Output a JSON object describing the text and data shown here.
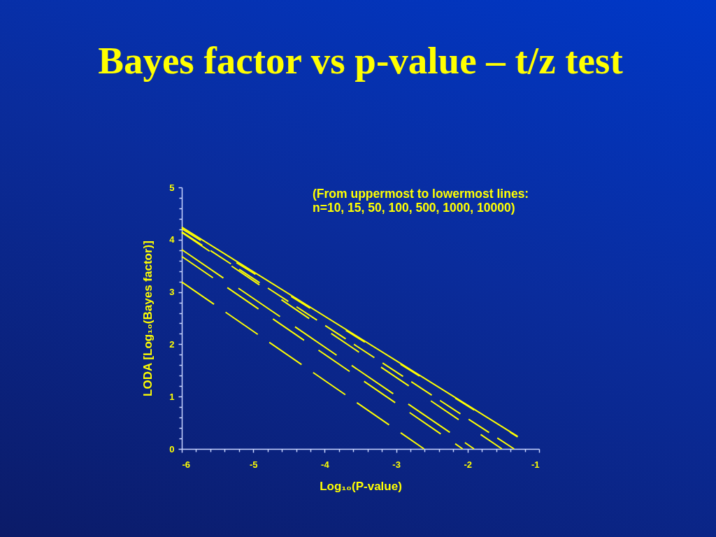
{
  "chart_data": {
    "type": "line",
    "title": "Bayes factor vs p-value – t/z test",
    "xlabel": "Log₁₀(P-value)",
    "ylabel": "LODA [Log₁₀(Bayes factor)]",
    "annotations": [
      "(From uppermost to lowermost lines:\nn=10, 15, 50, 100, 500, 1000, 10000)"
    ],
    "series": [
      {
        "color": "#ffff00",
        "line_style": "solid",
        "x": [
          -6,
          -1.3
        ],
        "values": [
          4.24,
          0.24
        ]
      },
      {
        "color": "#ffff00",
        "line_style": "dashed",
        "x": [
          -6,
          -1.3
        ],
        "values": [
          4.21,
          0.23
        ]
      },
      {
        "color": "#ffff00",
        "line_style": "dashed",
        "x": [
          -6,
          -1.35
        ],
        "values": [
          4.15,
          0
        ]
      },
      {
        "color": "#ffff00",
        "line_style": "dashed",
        "x": [
          -6,
          -1.52
        ],
        "values": [
          4.14,
          0
        ]
      },
      {
        "color": "#ffff00",
        "line_style": "dashed",
        "x": [
          -6,
          -1.91
        ],
        "values": [
          3.81,
          0
        ]
      },
      {
        "color": "#ffff00",
        "line_style": "dashed",
        "x": [
          -6,
          -2.07
        ],
        "values": [
          3.68,
          0
        ]
      },
      {
        "color": "#ffff00",
        "line_style": "dashed",
        "x": [
          -6,
          -2.61
        ],
        "values": [
          3.19,
          0
        ]
      }
    ],
    "xlim": [
      -6,
      -1
    ],
    "xticks": [
      -6,
      {
        "value": -5.8,
        "label": null
      },
      {
        "value": -5.6,
        "label": null
      },
      {
        "value": -5.4,
        "label": null
      },
      {
        "value": -5.2,
        "label": null
      },
      -5,
      {
        "value": -4.8,
        "label": null
      },
      {
        "value": -4.6,
        "label": null
      },
      {
        "value": -4.4,
        "label": null
      },
      {
        "value": -4.2,
        "label": null
      },
      -4,
      {
        "value": -3.8,
        "label": null
      },
      {
        "value": -3.6,
        "label": null
      },
      {
        "value": -3.4,
        "label": null
      },
      {
        "value": -3.2,
        "label": null
      },
      -3,
      {
        "value": -2.8,
        "label": null
      },
      {
        "value": -2.6,
        "label": null
      },
      {
        "value": -2.4,
        "label": null
      },
      {
        "value": -2.2,
        "label": null
      },
      -2,
      {
        "value": -1.8,
        "label": null
      },
      {
        "value": -1.6,
        "label": null
      },
      {
        "value": -1.4,
        "label": null
      },
      {
        "value": -1.2,
        "label": null
      },
      -1
    ],
    "ylim": [
      0,
      5
    ],
    "yticks": [
      0,
      {
        "value": 0.2,
        "label": null
      },
      {
        "value": 0.4,
        "label": null
      },
      {
        "value": 0.6,
        "label": null
      },
      {
        "value": 0.8,
        "label": null
      },
      1,
      {
        "value": 1.2,
        "label": null
      },
      {
        "value": 1.4,
        "label": null
      },
      {
        "value": 1.6,
        "label": null
      },
      {
        "value": 1.8,
        "label": null
      },
      2,
      {
        "value": 2.2,
        "label": null
      },
      {
        "value": 2.4,
        "label": null
      },
      {
        "value": 2.6,
        "label": null
      },
      {
        "value": 2.8,
        "label": null
      },
      3,
      {
        "value": 3.2,
        "label": null
      },
      {
        "value": 3.4,
        "label": null
      },
      {
        "value": 3.6,
        "label": null
      },
      {
        "value": 3.8,
        "label": null
      },
      4,
      {
        "value": 4.2,
        "label": null
      },
      {
        "value": 4.4,
        "label": null
      },
      {
        "value": 4.6,
        "label": null
      },
      {
        "value": 4.8,
        "label": null
      },
      5
    ]
  }
}
